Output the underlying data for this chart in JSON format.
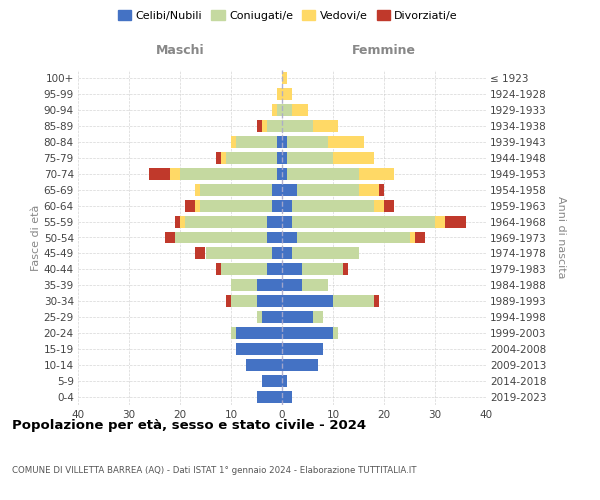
{
  "age_groups": [
    "0-4",
    "5-9",
    "10-14",
    "15-19",
    "20-24",
    "25-29",
    "30-34",
    "35-39",
    "40-44",
    "45-49",
    "50-54",
    "55-59",
    "60-64",
    "65-69",
    "70-74",
    "75-79",
    "80-84",
    "85-89",
    "90-94",
    "95-99",
    "100+"
  ],
  "birth_years": [
    "2019-2023",
    "2014-2018",
    "2009-2013",
    "2004-2008",
    "1999-2003",
    "1994-1998",
    "1989-1993",
    "1984-1988",
    "1979-1983",
    "1974-1978",
    "1969-1973",
    "1964-1968",
    "1959-1963",
    "1954-1958",
    "1949-1953",
    "1944-1948",
    "1939-1943",
    "1934-1938",
    "1929-1933",
    "1924-1928",
    "≤ 1923"
  ],
  "colors": {
    "celibi": "#4472C4",
    "coniugati": "#C5D9A0",
    "vedovi": "#FFD966",
    "divorziati": "#C0392B"
  },
  "maschi": {
    "celibi": [
      5,
      4,
      7,
      9,
      9,
      4,
      5,
      5,
      3,
      2,
      3,
      3,
      2,
      2,
      1,
      1,
      1,
      0,
      0,
      0,
      0
    ],
    "coniugati": [
      0,
      0,
      0,
      0,
      1,
      1,
      5,
      5,
      9,
      13,
      18,
      16,
      14,
      14,
      19,
      10,
      8,
      3,
      1,
      0,
      0
    ],
    "vedovi": [
      0,
      0,
      0,
      0,
      0,
      0,
      0,
      0,
      0,
      0,
      0,
      1,
      1,
      1,
      2,
      1,
      1,
      1,
      1,
      1,
      0
    ],
    "divorziati": [
      0,
      0,
      0,
      0,
      0,
      0,
      1,
      0,
      1,
      2,
      2,
      1,
      2,
      0,
      4,
      1,
      0,
      1,
      0,
      0,
      0
    ]
  },
  "femmine": {
    "celibi": [
      2,
      1,
      7,
      8,
      10,
      6,
      10,
      4,
      4,
      2,
      3,
      2,
      2,
      3,
      1,
      1,
      1,
      0,
      0,
      0,
      0
    ],
    "coniugati": [
      0,
      0,
      0,
      0,
      1,
      2,
      8,
      5,
      8,
      13,
      22,
      28,
      16,
      12,
      14,
      9,
      8,
      6,
      2,
      0,
      0
    ],
    "vedovi": [
      0,
      0,
      0,
      0,
      0,
      0,
      0,
      0,
      0,
      0,
      1,
      2,
      2,
      4,
      7,
      8,
      7,
      5,
      3,
      2,
      1
    ],
    "divorziati": [
      0,
      0,
      0,
      0,
      0,
      0,
      1,
      0,
      1,
      0,
      2,
      4,
      2,
      1,
      0,
      0,
      0,
      0,
      0,
      0,
      0
    ]
  },
  "xlim": 40,
  "title": "Popolazione per età, sesso e stato civile - 2024",
  "subtitle": "COMUNE DI VILLETTA BARREA (AQ) - Dati ISTAT 1° gennaio 2024 - Elaborazione TUTTITALIA.IT",
  "ylabel_left": "Fasce di età",
  "ylabel_right": "Anni di nascita",
  "xlabel_maschi": "Maschi",
  "xlabel_femmine": "Femmine",
  "legend_labels": [
    "Celibi/Nubili",
    "Coniugati/e",
    "Vedovi/e",
    "Divorziati/e"
  ],
  "background_color": "#FFFFFF",
  "grid_color": "#CCCCCC"
}
